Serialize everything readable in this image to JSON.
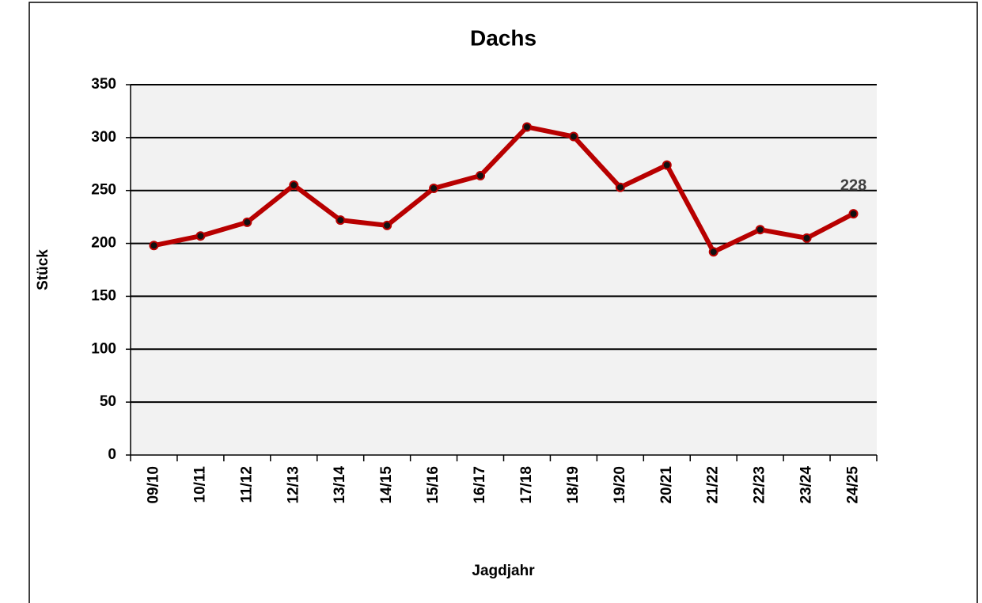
{
  "chart_data": {
    "type": "line",
    "title": "Dachs",
    "x_label": "Jagdjahr",
    "y_label": "Stück",
    "categories": [
      "09/10",
      "10/11",
      "11/12",
      "12/13",
      "13/14",
      "14/15",
      "15/16",
      "16/17",
      "17/18",
      "18/19",
      "19/20",
      "20/21",
      "21/22",
      "22/23",
      "23/24",
      "24/25"
    ],
    "series": [
      {
        "name": "Dachs",
        "color": "#b80000",
        "values": [
          198,
          207,
          220,
          255,
          222,
          217,
          252,
          264,
          310,
          301,
          253,
          274,
          192,
          213,
          205,
          228
        ],
        "value_labels": [
          null,
          null,
          null,
          null,
          null,
          null,
          null,
          null,
          null,
          null,
          null,
          null,
          null,
          null,
          null,
          "228"
        ]
      }
    ],
    "ylim": [
      0,
      350
    ],
    "yticks": [
      0,
      50,
      100,
      150,
      200,
      250,
      300,
      350
    ],
    "grid": true
  }
}
